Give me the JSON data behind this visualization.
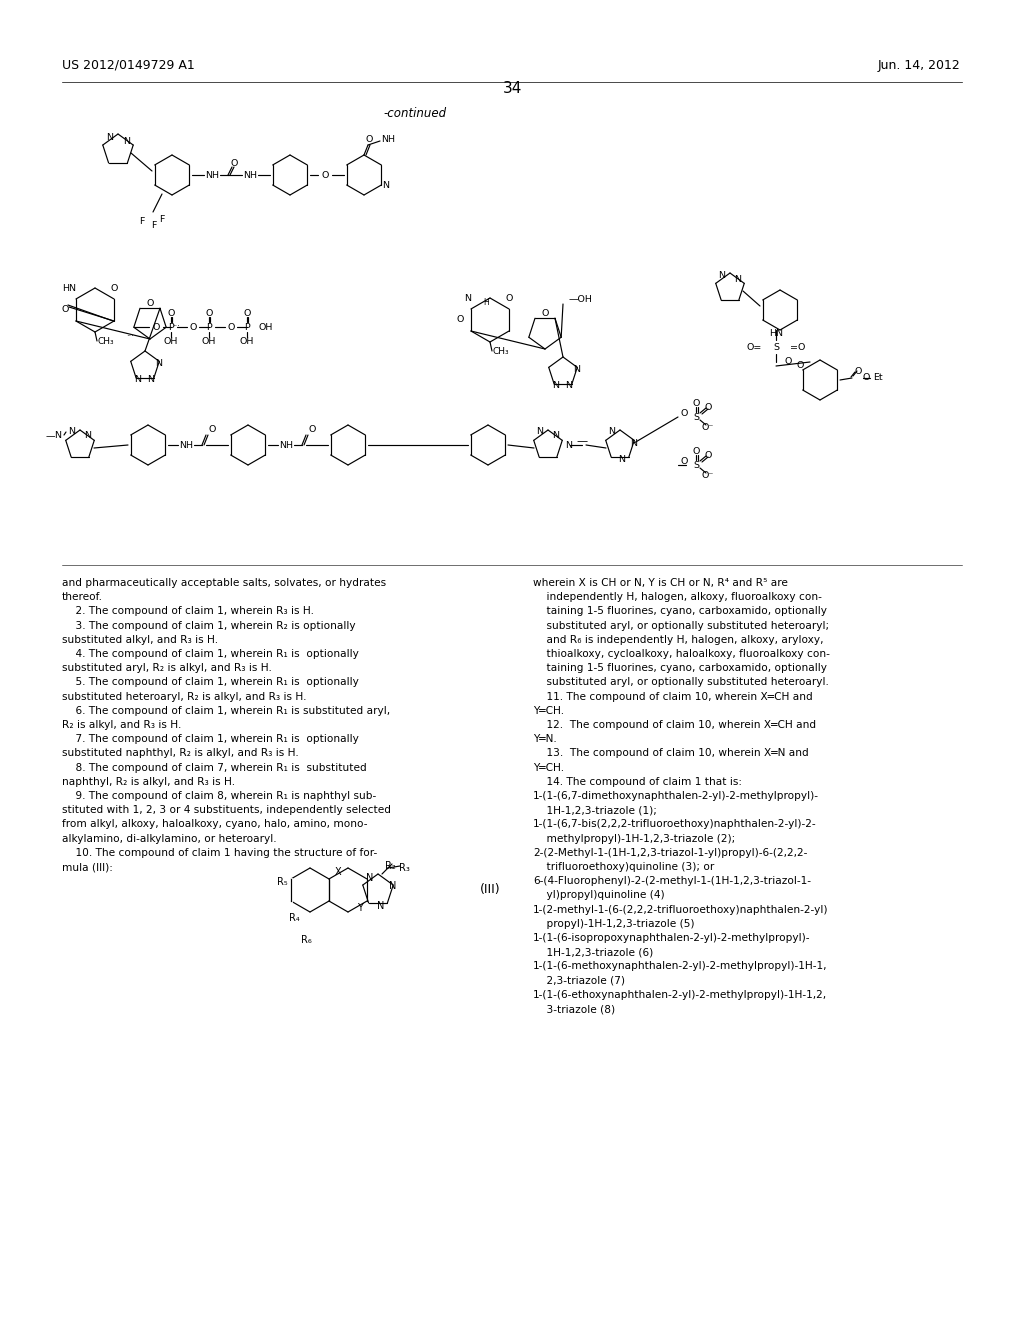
{
  "page_number": "34",
  "header_left": "US 2012/0149729 A1",
  "header_right": "Jun. 14, 2012",
  "continued_label": "-continued",
  "background_color": "#ffffff",
  "text_color": "#000000",
  "left_column_texts": [
    "and pharmaceutically acceptable salts, solvates, or hydrates",
    "thereof.",
    "    2. The compound of claim 1, wherein R₃ is H.",
    "    3. The compound of claim 1, wherein R₂ is optionally",
    "substituted alkyl, and R₃ is H.",
    "    4. The compound of claim 1, wherein R₁ is  optionally",
    "substituted aryl, R₂ is alkyl, and R₃ is H.",
    "    5. The compound of claim 1, wherein R₁ is  optionally",
    "substituted heteroaryl, R₂ is alkyl, and R₃ is H.",
    "    6. The compound of claim 1, wherein R₁ is substituted aryl,",
    "R₂ is alkyl, and R₃ is H.",
    "    7. The compound of claim 1, wherein R₁ is  optionally",
    "substituted naphthyl, R₂ is alkyl, and R₃ is H.",
    "    8. The compound of claim 7, wherein R₁ is  substituted",
    "naphthyl, R₂ is alkyl, and R₃ is H.",
    "    9. The compound of claim 8, wherein R₁ is naphthyl sub-",
    "stituted with 1, 2, 3 or 4 substituents, independently selected",
    "from alkyl, alkoxy, haloalkoxy, cyano, halo, amino, mono-",
    "alkylamino, di-alkylamino, or heteroaryl.",
    "    10. The compound of claim 1 having the structure of for-",
    "mula (III):"
  ],
  "right_column_texts": [
    "wherein X is CH or N, Y is CH or N, R⁴ and R⁵ are",
    "    independently H, halogen, alkoxy, fluoroalkoxy con-",
    "    taining 1-5 fluorines, cyano, carboxamido, optionally",
    "    substituted aryl, or optionally substituted heteroaryl;",
    "    and R₆ is independently H, halogen, alkoxy, aryloxy,",
    "    thioalkoxy, cycloalkoxy, haloalkoxy, fluoroalkoxy con-",
    "    taining 1-5 fluorines, cyano, carboxamido, optionally",
    "    substituted aryl, or optionally substituted heteroaryl.",
    "    11. The compound of claim 10, wherein X═CH and",
    "Y═CH.",
    "    12.  The compound of claim 10, wherein X═CH and",
    "Y═N.",
    "    13.  The compound of claim 10, wherein X═N and",
    "Y═CH.",
    "    14. The compound of claim 1 that is:",
    "1-(1-(6,7-dimethoxynaphthalen-2-yl)-2-methylpropyl)-",
    "    1H-1,2,3-triazole (1);",
    "1-(1-(6,7-bis(2,2,2-trifluoroethoxy)naphthalen-2-yl)-2-",
    "    methylpropyl)-1H-1,2,3-triazole (2);",
    "2-(2-Methyl-1-(1H-1,2,3-triazol-1-yl)propyl)-6-(2,2,2-",
    "    trifluoroethoxy)quinoline (3); or",
    "6-(4-Fluorophenyl)-2-(2-methyl-1-(1H-1,2,3-triazol-1-",
    "    yl)propyl)quinoline (4)",
    "1-(2-methyl-1-(6-(2,2,2-trifluoroethoxy)naphthalen-2-yl)",
    "    propyl)-1H-1,2,3-triazole (5)",
    "1-(1-(6-isopropoxynaphthalen-2-yl)-2-methylpropyl)-",
    "    1H-1,2,3-triazole (6)",
    "1-(1-(6-methoxynaphthalen-2-yl)-2-methylpropyl)-1H-1,",
    "    2,3-triazole (7)",
    "1-(1-(6-ethoxynaphthalen-2-yl)-2-methylpropyl)-1H-1,2,",
    "    3-triazole (8)"
  ],
  "formula_label": "(III)"
}
